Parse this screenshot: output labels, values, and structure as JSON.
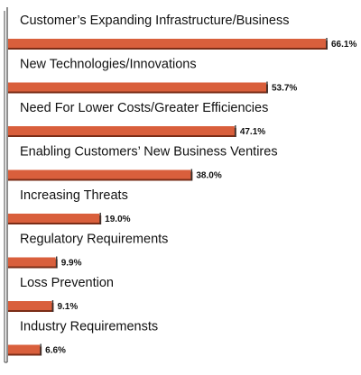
{
  "chart_data": {
    "type": "bar",
    "orientation": "horizontal",
    "categories": [
      "Customer’s Expanding Infrastructure/Business",
      "New Technologies/Innovations",
      "Need For Lower Costs/Greater Efficiencies",
      "Enabling Customers’ New Business Ventires",
      "Increasing Threats",
      "Regulatory Requirements",
      "Loss Prevention",
      "Industry Requiremensts"
    ],
    "values": [
      66.1,
      53.7,
      47.1,
      38.0,
      19.0,
      9.9,
      9.1,
      6.6
    ],
    "value_labels": [
      "66.1%",
      "53.7%",
      "47.1%",
      "38.0%",
      "19.0%",
      "9.9%",
      "9.1%",
      "6.6%"
    ],
    "title": "",
    "xlabel": "",
    "ylabel": "",
    "xlim": [
      0,
      66.1
    ],
    "grid": false,
    "legend": "none",
    "colors": {
      "bar": "#d95f3c",
      "bar_shadow": "#7a2d17",
      "axis": "#444444"
    }
  }
}
